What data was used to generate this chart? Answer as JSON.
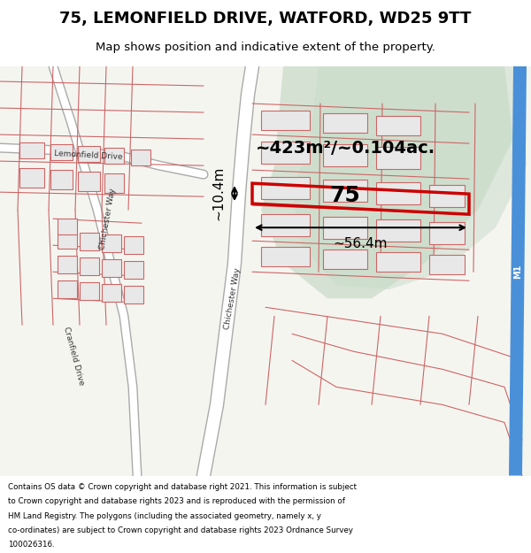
{
  "title_line1": "75, LEMONFIELD DRIVE, WATFORD, WD25 9TT",
  "title_line2": "Map shows position and indicative extent of the property.",
  "footer_text": "Contains OS data © Crown copyright and database right 2021. This information is subject to Crown copyright and database rights 2023 and is reproduced with the permission of HM Land Registry. The polygons (including the associated geometry, namely x, y co-ordinates) are subject to Crown copyright and database rights 2023 Ordnance Survey 100026316.",
  "area_label": "~423m²/~0.104ac.",
  "width_label": "~56.4m",
  "height_label": "~10.4m",
  "plot_number": "75",
  "bg_color": "#f5f5f0",
  "map_bg": "#f5f5f0",
  "road_color": "#cccccc",
  "plot_fill": "#d6e8d6",
  "highlight_fill": "none",
  "highlight_stroke": "#cc0000",
  "street_line_color": "#cc6666",
  "building_fill": "#e8e8e8",
  "building_stroke": "#cc6666",
  "motorway_color": "#4a90d9",
  "green_area_color": "#c8dbc8"
}
